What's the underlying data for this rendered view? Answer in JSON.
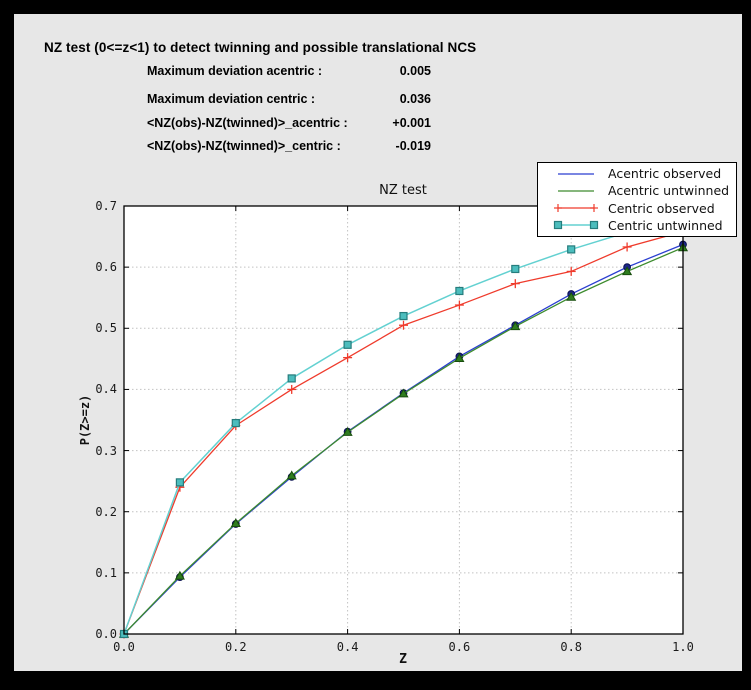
{
  "window": {
    "frame_color": "#000000",
    "bg_color": "#e7e7e7"
  },
  "header": {
    "title": "NZ test (0<=z<1) to detect twinning and possible translational NCS"
  },
  "stats": [
    {
      "label": "Maximum deviation acentric :",
      "value": "0.005"
    },
    {
      "label": "Maximum deviation centric :",
      "value": "0.036"
    },
    {
      "label": "<NZ(obs)-NZ(twinned)>_acentric :",
      "value": "+0.001"
    },
    {
      "label": "<NZ(obs)-NZ(twinned)>_centric :",
      "value": "-0.019"
    }
  ],
  "chart_data": {
    "type": "line",
    "title": "NZ test",
    "xlabel": "Z",
    "ylabel": "P(Z>=z)",
    "xlim": [
      0.0,
      1.0
    ],
    "ylim": [
      0.0,
      0.7
    ],
    "grid": true,
    "legend_position": "upper right, overlapping plot",
    "x_ticks": [
      0.0,
      0.2,
      0.4,
      0.6,
      0.8,
      1.0
    ],
    "x_tick_labels": [
      "0.0",
      "0.2",
      "0.4",
      "0.6",
      "0.8",
      "1.0"
    ],
    "y_ticks": [
      0.0,
      0.1,
      0.2,
      0.3,
      0.4,
      0.5,
      0.6,
      0.7
    ],
    "y_tick_labels": [
      "0.0",
      "0.1",
      "0.2",
      "0.3",
      "0.4",
      "0.5",
      "0.6",
      "0.7"
    ],
    "x": [
      0.0,
      0.1,
      0.2,
      0.3,
      0.4,
      0.5,
      0.6,
      0.7,
      0.8,
      0.9,
      1.0
    ],
    "series": [
      {
        "name": "Acentric observed",
        "color": "#2b3fd0",
        "marker": "circle",
        "marker_fill": "#1d2688",
        "marker_edge": "#0a1150",
        "values": [
          0.0,
          0.093,
          0.18,
          0.257,
          0.331,
          0.394,
          0.454,
          0.505,
          0.556,
          0.6,
          0.637
        ]
      },
      {
        "name": "Acentric untwinned",
        "color": "#3d8b2e",
        "marker": "triangle",
        "marker_fill": "#2f7d1f",
        "marker_edge": "#174d0d",
        "values": [
          0.0,
          0.095,
          0.181,
          0.259,
          0.33,
          0.393,
          0.451,
          0.503,
          0.551,
          0.593,
          0.632
        ]
      },
      {
        "name": "Centric observed",
        "color": "#ef3b2c",
        "marker": "plus",
        "marker_fill": "#ef3b2c",
        "marker_edge": "#ef3b2c",
        "values": [
          0.0,
          0.24,
          0.341,
          0.4,
          0.452,
          0.505,
          0.538,
          0.573,
          0.593,
          0.633,
          0.658
        ]
      },
      {
        "name": "Centric untwinned",
        "color": "#63d1d1",
        "marker": "square",
        "marker_fill": "#4cbdbd",
        "marker_edge": "#267d7d",
        "values": [
          0.0,
          0.248,
          0.345,
          0.418,
          0.473,
          0.52,
          0.561,
          0.597,
          0.629,
          0.657,
          0.683
        ]
      }
    ]
  }
}
